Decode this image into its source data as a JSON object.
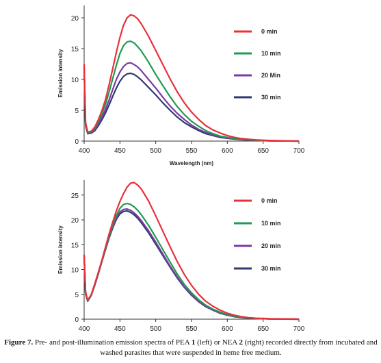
{
  "caption": {
    "label": "Figure 7.",
    "parts": [
      {
        "text": " Pre- and post-illumination emission spectra of PEA ",
        "bold": false
      },
      {
        "text": "1",
        "bold": true
      },
      {
        "text": " (left) or NEA ",
        "bold": false
      },
      {
        "text": "2",
        "bold": true
      },
      {
        "text": " (right) recorded directly from incubated and washed parasites that were suspended in heme free medium.",
        "bold": false
      }
    ]
  },
  "chart_data": [
    {
      "type": "line",
      "xlabel": "Wavelength (nm)",
      "ylabel": "Emission intensity",
      "xlim": [
        400,
        700
      ],
      "ylim": [
        0,
        22
      ],
      "xticks": [
        400,
        450,
        500,
        550,
        600,
        650,
        700
      ],
      "yticks": [
        0,
        5,
        10,
        15,
        20
      ],
      "legend_position": "top-right",
      "series": [
        {
          "name": "0 min",
          "color": "#e8303a",
          "peak": 20.5,
          "peak_x": 468,
          "x": [
            400,
            402,
            405,
            410,
            415,
            420,
            425,
            430,
            435,
            440,
            445,
            450,
            455,
            460,
            465,
            470,
            475,
            480,
            490,
            500,
            510,
            520,
            530,
            540,
            550,
            560,
            570,
            580,
            590,
            600,
            610,
            620,
            630,
            640,
            650,
            660,
            680,
            700
          ],
          "y": [
            12.5,
            3.0,
            1.5,
            1.6,
            2.3,
            3.5,
            5.0,
            6.8,
            9.2,
            11.8,
            14.4,
            16.8,
            18.8,
            20.0,
            20.5,
            20.3,
            19.8,
            19.0,
            17.0,
            14.7,
            12.4,
            10.1,
            8.0,
            6.2,
            4.7,
            3.5,
            2.5,
            1.8,
            1.3,
            0.9,
            0.6,
            0.4,
            0.3,
            0.2,
            0.15,
            0.1,
            0.05,
            0.0
          ]
        },
        {
          "name": "10 min",
          "color": "#1f9a4f",
          "peak": 16.2,
          "peak_x": 466,
          "x": [
            400,
            402,
            405,
            410,
            415,
            420,
            425,
            430,
            435,
            440,
            445,
            450,
            455,
            460,
            465,
            470,
            475,
            480,
            490,
            500,
            510,
            520,
            530,
            540,
            550,
            560,
            570,
            580,
            590,
            600,
            610,
            620,
            630,
            640,
            650,
            660,
            680,
            700
          ],
          "y": [
            12.2,
            2.8,
            1.4,
            1.5,
            2.1,
            3.2,
            4.5,
            6.0,
            8.0,
            10.2,
            12.3,
            14.2,
            15.5,
            16.1,
            16.2,
            15.9,
            15.3,
            14.6,
            12.8,
            10.8,
            9.0,
            7.2,
            5.6,
            4.3,
            3.2,
            2.4,
            1.7,
            1.2,
            0.8,
            0.6,
            0.4,
            0.3,
            0.2,
            0.15,
            0.1,
            0.05,
            0.02,
            0.0
          ]
        },
        {
          "name": "20 Min",
          "color": "#7a3aa3",
          "peak": 12.7,
          "peak_x": 465,
          "x": [
            400,
            402,
            405,
            410,
            415,
            420,
            425,
            430,
            435,
            440,
            445,
            450,
            455,
            460,
            465,
            470,
            475,
            480,
            490,
            500,
            510,
            520,
            530,
            540,
            550,
            560,
            570,
            580,
            590,
            600,
            610,
            620,
            630,
            640,
            650,
            660,
            680,
            700
          ],
          "y": [
            12.0,
            2.6,
            1.3,
            1.4,
            1.9,
            2.8,
            3.9,
            5.2,
            6.7,
            8.4,
            10.0,
            11.2,
            12.1,
            12.6,
            12.7,
            12.4,
            12.0,
            11.4,
            10.0,
            8.6,
            7.1,
            5.7,
            4.5,
            3.5,
            2.6,
            1.9,
            1.4,
            1.0,
            0.7,
            0.5,
            0.35,
            0.25,
            0.18,
            0.12,
            0.08,
            0.05,
            0.02,
            0.0
          ]
        },
        {
          "name": "30 min",
          "color": "#2e3a6e",
          "peak": 11.0,
          "peak_x": 464,
          "x": [
            400,
            402,
            405,
            410,
            415,
            420,
            425,
            430,
            435,
            440,
            445,
            450,
            455,
            460,
            465,
            470,
            475,
            480,
            490,
            500,
            510,
            520,
            530,
            540,
            550,
            560,
            570,
            580,
            590,
            600,
            610,
            620,
            630,
            640,
            650,
            660,
            680,
            700
          ],
          "y": [
            11.8,
            2.5,
            1.2,
            1.3,
            1.7,
            2.5,
            3.5,
            4.6,
            5.9,
            7.3,
            8.6,
            9.7,
            10.5,
            10.9,
            11.0,
            10.8,
            10.4,
            9.9,
            8.7,
            7.5,
            6.2,
            5.0,
            3.9,
            3.0,
            2.3,
            1.7,
            1.2,
            0.9,
            0.6,
            0.45,
            0.32,
            0.22,
            0.16,
            0.1,
            0.07,
            0.04,
            0.02,
            0.0
          ]
        }
      ]
    },
    {
      "type": "line",
      "xlabel": "",
      "ylabel": "Emission intensity",
      "xlim": [
        400,
        700
      ],
      "ylim": [
        0,
        28
      ],
      "xticks": [
        400,
        450,
        500,
        550,
        600,
        650,
        700
      ],
      "yticks": [
        0,
        5,
        10,
        15,
        20,
        25
      ],
      "legend_position": "top-right",
      "series": [
        {
          "name": "0 min",
          "color": "#e8303a",
          "peak": 27.5,
          "peak_x": 468,
          "x": [
            400,
            402,
            405,
            410,
            415,
            420,
            425,
            430,
            435,
            440,
            445,
            450,
            455,
            460,
            465,
            470,
            475,
            480,
            490,
            500,
            510,
            520,
            530,
            540,
            550,
            560,
            570,
            580,
            590,
            600,
            610,
            620,
            630,
            640,
            650,
            660,
            680,
            700
          ],
          "y": [
            13.0,
            5.5,
            3.8,
            5.0,
            7.2,
            9.5,
            12.0,
            14.6,
            17.2,
            19.6,
            21.8,
            23.7,
            25.3,
            26.6,
            27.4,
            27.5,
            27.0,
            26.2,
            23.8,
            20.8,
            17.7,
            14.6,
            11.6,
            9.0,
            6.8,
            5.0,
            3.6,
            2.6,
            1.8,
            1.2,
            0.8,
            0.5,
            0.3,
            0.2,
            0.15,
            0.1,
            0.05,
            0.0
          ]
        },
        {
          "name": "10 min",
          "color": "#1f9a4f",
          "peak": 23.3,
          "peak_x": 463,
          "x": [
            400,
            402,
            405,
            410,
            415,
            420,
            425,
            430,
            435,
            440,
            445,
            450,
            455,
            460,
            465,
            470,
            475,
            480,
            490,
            500,
            510,
            520,
            530,
            540,
            550,
            560,
            570,
            580,
            590,
            600,
            610,
            620,
            630,
            640,
            650,
            660,
            680,
            700
          ],
          "y": [
            12.8,
            5.3,
            3.7,
            4.9,
            7.1,
            9.4,
            11.9,
            14.4,
            16.8,
            19.0,
            20.9,
            22.3,
            23.1,
            23.3,
            23.1,
            22.6,
            21.9,
            21.0,
            18.9,
            16.5,
            14.0,
            11.5,
            9.1,
            7.0,
            5.3,
            3.9,
            2.8,
            2.0,
            1.4,
            0.9,
            0.6,
            0.4,
            0.25,
            0.15,
            0.1,
            0.06,
            0.03,
            0.0
          ]
        },
        {
          "name": "20 min",
          "color": "#7a3aa3",
          "peak": 22.2,
          "peak_x": 461,
          "x": [
            400,
            402,
            405,
            410,
            415,
            420,
            425,
            430,
            435,
            440,
            445,
            450,
            455,
            460,
            465,
            470,
            475,
            480,
            490,
            500,
            510,
            520,
            530,
            540,
            550,
            560,
            570,
            580,
            590,
            600,
            610,
            620,
            630,
            640,
            650,
            660,
            680,
            700
          ],
          "y": [
            12.7,
            5.2,
            3.7,
            4.9,
            7.0,
            9.3,
            11.8,
            14.3,
            16.6,
            18.7,
            20.4,
            21.6,
            22.1,
            22.2,
            21.9,
            21.4,
            20.7,
            19.8,
            17.8,
            15.5,
            13.1,
            10.7,
            8.5,
            6.5,
            4.9,
            3.6,
            2.6,
            1.8,
            1.3,
            0.85,
            0.55,
            0.35,
            0.22,
            0.14,
            0.09,
            0.05,
            0.02,
            0.0
          ]
        },
        {
          "name": "30 min",
          "color": "#2e3a6e",
          "peak": 21.8,
          "peak_x": 461,
          "x": [
            400,
            402,
            405,
            410,
            415,
            420,
            425,
            430,
            435,
            440,
            445,
            450,
            455,
            460,
            465,
            470,
            475,
            480,
            490,
            500,
            510,
            520,
            530,
            540,
            550,
            560,
            570,
            580,
            590,
            600,
            610,
            620,
            630,
            640,
            650,
            660,
            680,
            700
          ],
          "y": [
            12.6,
            5.1,
            3.6,
            4.8,
            6.9,
            9.2,
            11.7,
            14.1,
            16.4,
            18.4,
            20.1,
            21.2,
            21.7,
            21.8,
            21.5,
            21.0,
            20.3,
            19.4,
            17.4,
            15.1,
            12.8,
            10.5,
            8.3,
            6.4,
            4.8,
            3.5,
            2.5,
            1.8,
            1.2,
            0.8,
            0.5,
            0.33,
            0.2,
            0.13,
            0.08,
            0.05,
            0.02,
            0.0
          ]
        }
      ]
    }
  ]
}
